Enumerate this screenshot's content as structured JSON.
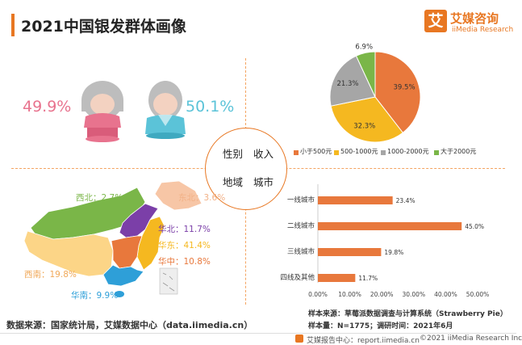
{
  "title": "2021中国银发群体画像",
  "brand": {
    "logo_char": "艾",
    "name_cn": "艾媒咨询",
    "name_en": "iiMedia Research"
  },
  "center": {
    "gender": "性别",
    "income": "收入",
    "region": "地域",
    "city": "城市"
  },
  "gender": {
    "female_pct": "49.9%",
    "male_pct": "50.1%",
    "female_color": "#e8738e",
    "male_color": "#5bc3d8"
  },
  "chart_data": [
    {
      "type": "pie",
      "labels": [
        "小于500元",
        "500-1000元",
        "1000-2000元",
        "大于2000元"
      ],
      "values": [
        39.5,
        32.3,
        21.3,
        6.9
      ],
      "value_labels": [
        "39.5%",
        "32.3%",
        "21.3%",
        "6.9%"
      ],
      "colors": [
        "#e8783c",
        "#f5b820",
        "#a6a6a6",
        "#7ab648"
      ],
      "legend": "bottom"
    },
    {
      "type": "bar",
      "orientation": "horizontal",
      "categories": [
        "一线城市",
        "二线城市",
        "三线城市",
        "四线及其他"
      ],
      "values": [
        23.4,
        45.0,
        19.8,
        11.7
      ],
      "value_labels": [
        "23.4%",
        "45.0%",
        "19.8%",
        "11.7%"
      ],
      "xlim": [
        0,
        50
      ],
      "xticks": [
        "0.00%",
        "10.00%",
        "20.00%",
        "30.00%",
        "40.00%",
        "50.00%"
      ],
      "color": "#e8783c"
    },
    {
      "type": "map",
      "regions": [
        {
          "name": "西北",
          "value": "2.7%",
          "color": "#7ab648"
        },
        {
          "name": "东北",
          "value": "3.6%",
          "color": "#f7c6a6"
        },
        {
          "name": "华北",
          "value": "11.7%",
          "color": "#7b3fa8"
        },
        {
          "name": "华东",
          "value": "41.4%",
          "color": "#f5b820"
        },
        {
          "name": "华中",
          "value": "10.8%",
          "color": "#e8783c"
        },
        {
          "name": "西南",
          "value": "19.8%",
          "color": "#fcd587"
        },
        {
          "name": "华南",
          "value": "9.9%",
          "color": "#2e9fd8"
        }
      ]
    }
  ],
  "sample": {
    "source": "样本来源：草莓派数据调查与计算系统（Strawberry Pie）",
    "size": "样本量：N=1775；调研时间：2021年6月"
  },
  "data_source": "数据来源：国家统计局，艾媒数据中心（data.iimedia.cn）",
  "footer": {
    "left": "艾媒报告中心：report.iimedia.cn",
    "right": "©2021  iiMedia Research  Inc"
  }
}
